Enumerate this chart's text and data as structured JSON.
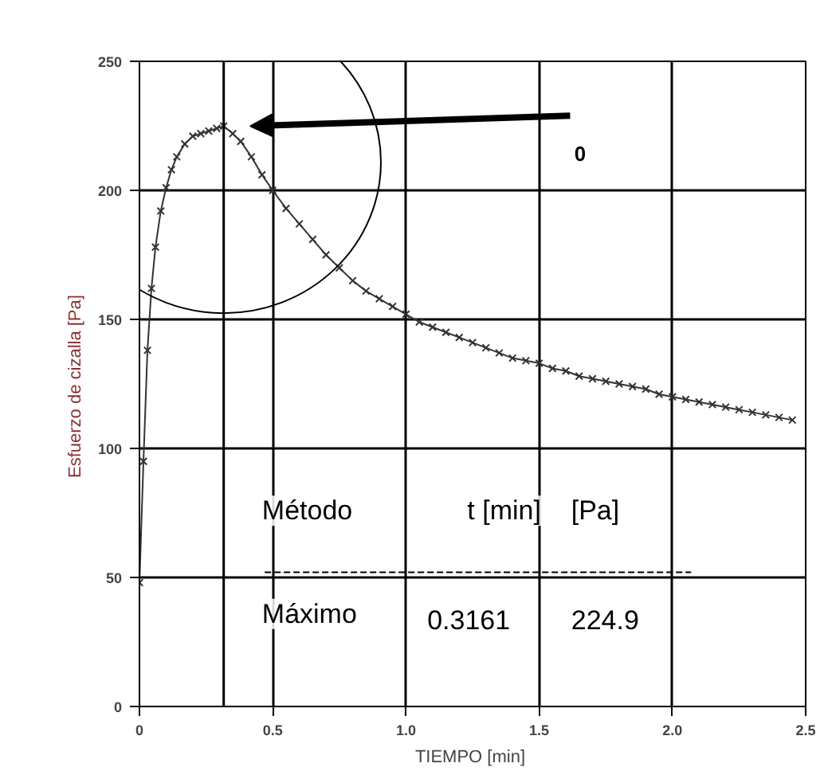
{
  "chart_data": {
    "type": "line",
    "xlabel": "TIEMPO  [min]",
    "ylabel": "Esfuerzo de cizalla  [Pa]",
    "x": [
      0,
      0.015,
      0.03,
      0.045,
      0.06,
      0.08,
      0.1,
      0.12,
      0.14,
      0.17,
      0.2,
      0.23,
      0.26,
      0.29,
      0.3161,
      0.35,
      0.38,
      0.42,
      0.46,
      0.5,
      0.55,
      0.6,
      0.65,
      0.7,
      0.75,
      0.8,
      0.85,
      0.9,
      0.95,
      1.0,
      1.05,
      1.1,
      1.15,
      1.2,
      1.25,
      1.3,
      1.35,
      1.4,
      1.45,
      1.5,
      1.55,
      1.6,
      1.65,
      1.7,
      1.75,
      1.8,
      1.85,
      1.9,
      1.95,
      2.0,
      2.05,
      2.1,
      2.15,
      2.2,
      2.25,
      2.3,
      2.35,
      2.4,
      2.45
    ],
    "series": [
      {
        "color": "#333333",
        "values": [
          48,
          95,
          138,
          162,
          178,
          192,
          201,
          208,
          213,
          218,
          221,
          222,
          223,
          224,
          224.9,
          222,
          219,
          213,
          206,
          200,
          193,
          187,
          181,
          175,
          170,
          165,
          161,
          158,
          155,
          152,
          149,
          147,
          145,
          143,
          141,
          139,
          137,
          135,
          134,
          133,
          131,
          130,
          128,
          127,
          126,
          125,
          124,
          123,
          121,
          120,
          119,
          118,
          117,
          116,
          115,
          114,
          113,
          112,
          111
        ]
      }
    ],
    "xlim": [
      0,
      2.5
    ],
    "ylim": [
      0,
      250
    ],
    "xticks": [
      0,
      0.5,
      {
        "value": 1,
        "label": "1.0"
      },
      1.5,
      {
        "value": 2,
        "label": "2.0"
      },
      2.5
    ],
    "yticks": [
      0,
      50,
      100,
      150,
      200,
      250
    ],
    "grid": true,
    "marker": "cross",
    "line_style": "solid",
    "ref_lines": [
      {
        "axis": "x",
        "value": 0.3161,
        "label": null,
        "color": "#000000"
      }
    ],
    "annotations": [
      "0",
      "Método",
      "t [min]",
      "[Pa]",
      "Máximo",
      "0.3161",
      "224.9"
    ]
  }
}
